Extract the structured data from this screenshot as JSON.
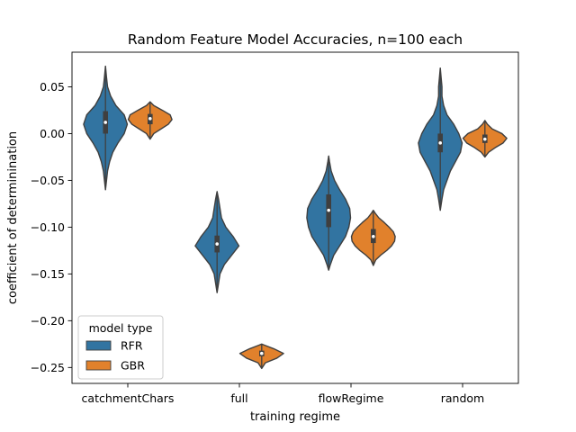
{
  "chart_data": {
    "type": "violin",
    "title": "Random Feature Model Accuracies, n=100 each",
    "xlabel": "training regime",
    "ylabel": "coefficient of determinination",
    "categories": [
      "catchmentChars",
      "full",
      "flowRegime",
      "random"
    ],
    "ylim": [
      -0.267,
      0.087
    ],
    "yticks": [
      0.05,
      0.0,
      -0.05,
      -0.1,
      -0.15,
      -0.2,
      -0.25
    ],
    "ytick_labels": [
      "0.05",
      "0.00",
      "−0.05",
      "−0.10",
      "−0.15",
      "−0.20",
      "−0.25"
    ],
    "legend": {
      "title": "model type",
      "placement": "lower-left",
      "entries": [
        "RFR",
        "GBR"
      ]
    },
    "series": [
      {
        "name": "RFR",
        "color": "#3274a1",
        "violins": [
          {
            "category": "catchmentChars",
            "min": -0.06,
            "max": 0.072,
            "q1": 0.0,
            "median": 0.012,
            "q3": 0.024,
            "profile": [
              [
                -0.06,
                0.0
              ],
              [
                -0.05,
                0.01
              ],
              [
                -0.04,
                0.02
              ],
              [
                -0.03,
                0.04
              ],
              [
                -0.02,
                0.07
              ],
              [
                -0.01,
                0.12
              ],
              [
                0.0,
                0.18
              ],
              [
                0.01,
                0.21
              ],
              [
                0.02,
                0.18
              ],
              [
                0.03,
                0.1
              ],
              [
                0.04,
                0.05
              ],
              [
                0.05,
                0.02
              ],
              [
                0.06,
                0.01
              ],
              [
                0.072,
                0.0
              ]
            ]
          },
          {
            "category": "full",
            "min": -0.17,
            "max": -0.062,
            "q1": -0.127,
            "median": -0.118,
            "q3": -0.109,
            "profile": [
              [
                -0.17,
                0.0
              ],
              [
                -0.16,
                0.01
              ],
              [
                -0.15,
                0.02
              ],
              [
                -0.14,
                0.05
              ],
              [
                -0.13,
                0.1
              ],
              [
                -0.12,
                0.15
              ],
              [
                -0.11,
                0.11
              ],
              [
                -0.1,
                0.06
              ],
              [
                -0.09,
                0.03
              ],
              [
                -0.08,
                0.02
              ],
              [
                -0.07,
                0.01
              ],
              [
                -0.062,
                0.0
              ]
            ]
          },
          {
            "category": "flowRegime",
            "min": -0.146,
            "max": -0.024,
            "q1": -0.1,
            "median": -0.082,
            "q3": -0.065,
            "profile": [
              [
                -0.146,
                0.0
              ],
              [
                -0.14,
                0.02
              ],
              [
                -0.13,
                0.06
              ],
              [
                -0.12,
                0.13
              ],
              [
                -0.11,
                0.2
              ],
              [
                -0.1,
                0.24
              ],
              [
                -0.09,
                0.26
              ],
              [
                -0.08,
                0.25
              ],
              [
                -0.07,
                0.2
              ],
              [
                -0.06,
                0.13
              ],
              [
                -0.05,
                0.07
              ],
              [
                -0.04,
                0.03
              ],
              [
                -0.03,
                0.01
              ],
              [
                -0.024,
                0.0
              ]
            ]
          },
          {
            "category": "random",
            "min": -0.082,
            "max": 0.07,
            "q1": -0.02,
            "median": -0.01,
            "q3": 0.0,
            "profile": [
              [
                -0.082,
                0.0
              ],
              [
                -0.07,
                0.01
              ],
              [
                -0.06,
                0.02
              ],
              [
                -0.05,
                0.04
              ],
              [
                -0.04,
                0.06
              ],
              [
                -0.03,
                0.09
              ],
              [
                -0.02,
                0.12
              ],
              [
                -0.01,
                0.13
              ],
              [
                0.0,
                0.11
              ],
              [
                0.01,
                0.08
              ],
              [
                0.02,
                0.04
              ],
              [
                0.03,
                0.02
              ],
              [
                0.04,
                0.01
              ],
              [
                0.05,
                0.01
              ],
              [
                0.06,
                0.005
              ],
              [
                0.07,
                0.0
              ]
            ]
          }
        ]
      },
      {
        "name": "GBR",
        "color": "#e1812c",
        "violins": [
          {
            "category": "catchmentChars",
            "min": -0.006,
            "max": 0.034,
            "q1": 0.01,
            "median": 0.016,
            "q3": 0.021,
            "profile": [
              [
                -0.006,
                0.0
              ],
              [
                0.0,
                0.06
              ],
              [
                0.005,
                0.18
              ],
              [
                0.01,
                0.3
              ],
              [
                0.015,
                0.36
              ],
              [
                0.02,
                0.33
              ],
              [
                0.025,
                0.2
              ],
              [
                0.03,
                0.06
              ],
              [
                0.034,
                0.0
              ]
            ]
          },
          {
            "category": "full",
            "min": -0.251,
            "max": -0.225,
            "q1": -0.238,
            "median": -0.235,
            "q3": -0.232,
            "profile": [
              [
                -0.251,
                0.0
              ],
              [
                -0.245,
                0.06
              ],
              [
                -0.24,
                0.25
              ],
              [
                -0.235,
                0.36
              ],
              [
                -0.23,
                0.2
              ],
              [
                -0.226,
                0.04
              ],
              [
                -0.225,
                0.0
              ]
            ]
          },
          {
            "category": "flowRegime",
            "min": -0.141,
            "max": -0.082,
            "q1": -0.117,
            "median": -0.11,
            "q3": -0.102,
            "profile": [
              [
                -0.141,
                0.0
              ],
              [
                -0.135,
                0.04
              ],
              [
                -0.13,
                0.12
              ],
              [
                -0.125,
                0.22
              ],
              [
                -0.12,
                0.3
              ],
              [
                -0.115,
                0.35
              ],
              [
                -0.11,
                0.36
              ],
              [
                -0.105,
                0.33
              ],
              [
                -0.1,
                0.26
              ],
              [
                -0.095,
                0.18
              ],
              [
                -0.09,
                0.09
              ],
              [
                -0.085,
                0.03
              ],
              [
                -0.082,
                0.0
              ]
            ]
          },
          {
            "category": "random",
            "min": -0.025,
            "max": 0.014,
            "q1": -0.01,
            "median": -0.006,
            "q3": -0.001,
            "profile": [
              [
                -0.025,
                0.0
              ],
              [
                -0.02,
                0.06
              ],
              [
                -0.015,
                0.17
              ],
              [
                -0.01,
                0.3
              ],
              [
                -0.005,
                0.36
              ],
              [
                0.0,
                0.28
              ],
              [
                0.005,
                0.12
              ],
              [
                0.01,
                0.04
              ],
              [
                0.014,
                0.0
              ]
            ]
          }
        ]
      }
    ]
  }
}
